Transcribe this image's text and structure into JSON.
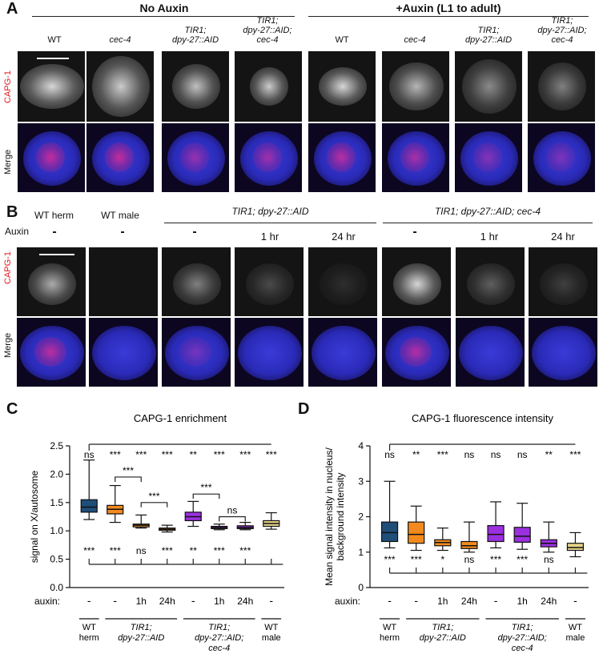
{
  "panelA": {
    "letter": "A",
    "group1": "No Auxin",
    "group2": "+Auxin (L1 to adult)",
    "columns": [
      "WT",
      "cec-4",
      "TIR1;\ndpy-27::AID",
      "TIR1;\ndpy-27::AID;\ncec-4",
      "WT",
      "cec-4",
      "TIR1;\ndpy-27::AID",
      "TIR1;\ndpy-27::AID;\ncec-4"
    ],
    "row1": "CAPG-1",
    "row2": "Merge"
  },
  "panelB": {
    "letter": "B",
    "col_wt_herm": "WT herm",
    "col_wt_male": "WT male",
    "group1": "TIR1; dpy-27::AID",
    "group2": "TIR1; dpy-27::AID; cec-4",
    "auxin_label": "Auxin",
    "auxin_values": [
      "-",
      "-",
      "-",
      "1 hr",
      "24 hr",
      "-",
      "1 hr",
      "24 hr"
    ],
    "row1": "CAPG-1",
    "row2": "Merge"
  },
  "panelC": {
    "letter": "C"
  },
  "panelD": {
    "letter": "D"
  },
  "chart_data": [
    {
      "type": "box",
      "title": "CAPG-1 enrichment",
      "ylabel": "signal on X/autosome",
      "ylim": [
        0.0,
        2.5
      ],
      "yticks": [
        "0.0",
        "0.5",
        "1.0",
        "1.5",
        "2.0",
        "2.5"
      ],
      "auxin_label": "auxin:",
      "auxin_row": [
        "-",
        "-",
        "1h",
        "24h",
        "-",
        "1h",
        "24h",
        "-"
      ],
      "group_labels": [
        "WT\nherm",
        "TIR1;\ndpy-27::AID",
        "TIR1;\ndpy-27::AID;\ncec-4",
        "WT\nmale"
      ],
      "colors": [
        "#1f4e79",
        "#f28a1e",
        "#f28a1e",
        "#f28a1e",
        "#9b30e0",
        "#9b30e0",
        "#9b30e0",
        "#e8d38a"
      ],
      "series": [
        {
          "min": 1.2,
          "q1": 1.33,
          "median": 1.42,
          "q3": 1.55,
          "max": 2.25
        },
        {
          "min": 1.15,
          "q1": 1.3,
          "median": 1.38,
          "q3": 1.45,
          "max": 1.8
        },
        {
          "min": 1.05,
          "q1": 1.07,
          "median": 1.1,
          "q3": 1.12,
          "max": 1.28
        },
        {
          "min": 0.98,
          "q1": 1.01,
          "median": 1.03,
          "q3": 1.05,
          "max": 1.1
        },
        {
          "min": 1.08,
          "q1": 1.18,
          "median": 1.25,
          "q3": 1.33,
          "max": 1.52
        },
        {
          "min": 1.02,
          "q1": 1.04,
          "median": 1.06,
          "q3": 1.08,
          "max": 1.12
        },
        {
          "min": 1.02,
          "q1": 1.04,
          "median": 1.06,
          "q3": 1.09,
          "max": 1.15
        },
        {
          "min": 1.03,
          "q1": 1.08,
          "median": 1.13,
          "q3": 1.18,
          "max": 1.32
        }
      ],
      "top_sig": [
        "ns",
        "***",
        "***",
        "***",
        "**",
        "***",
        "***",
        "***"
      ],
      "bottom_sig": [
        "***",
        "***",
        "ns",
        "***",
        "**",
        "***",
        "***"
      ],
      "bracket_sig": [
        "***",
        "***",
        "***",
        "ns"
      ]
    },
    {
      "type": "box",
      "title": "CAPG-1 fluorescence intensity",
      "ylabel": "Mean signal intensity in nucleus/\nbackground intensity",
      "ylim": [
        0,
        4
      ],
      "yticks": [
        "0",
        "1",
        "2",
        "3",
        "4"
      ],
      "auxin_label": "auxin:",
      "auxin_row": [
        "-",
        "-",
        "1h",
        "24h",
        "-",
        "1h",
        "24h",
        "-"
      ],
      "group_labels": [
        "WT\nherm",
        "TIR1;\ndpy-27::AID",
        "TIR1;\ndpy-27::AID;\ncec-4",
        "WT\nmale"
      ],
      "colors": [
        "#1f4e79",
        "#f28a1e",
        "#f28a1e",
        "#f28a1e",
        "#9b30e0",
        "#9b30e0",
        "#9b30e0",
        "#e8d38a"
      ],
      "series": [
        {
          "min": 1.12,
          "q1": 1.3,
          "median": 1.55,
          "q3": 1.85,
          "max": 3.0
        },
        {
          "min": 1.05,
          "q1": 1.25,
          "median": 1.5,
          "q3": 1.85,
          "max": 2.3
        },
        {
          "min": 1.05,
          "q1": 1.18,
          "median": 1.27,
          "q3": 1.35,
          "max": 1.68
        },
        {
          "min": 1.0,
          "q1": 1.1,
          "median": 1.18,
          "q3": 1.3,
          "max": 1.85
        },
        {
          "min": 1.12,
          "q1": 1.3,
          "median": 1.5,
          "q3": 1.75,
          "max": 2.42
        },
        {
          "min": 1.08,
          "q1": 1.28,
          "median": 1.45,
          "q3": 1.7,
          "max": 2.38
        },
        {
          "min": 1.0,
          "q1": 1.15,
          "median": 1.25,
          "q3": 1.35,
          "max": 1.85
        },
        {
          "min": 0.87,
          "q1": 1.05,
          "median": 1.13,
          "q3": 1.25,
          "max": 1.55
        }
      ],
      "top_sig": [
        "ns",
        "**",
        "***",
        "ns",
        "ns",
        "ns",
        "**",
        "***"
      ],
      "bottom_sig": [
        "***",
        "***",
        "*",
        "ns",
        "***",
        "***",
        "ns"
      ]
    }
  ]
}
